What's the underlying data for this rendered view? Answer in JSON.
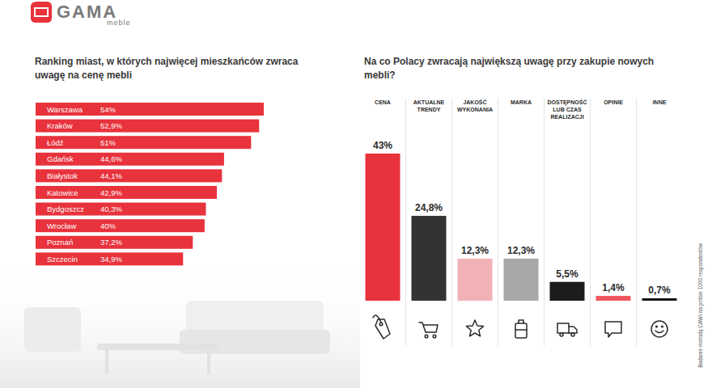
{
  "logo": {
    "name": "GAMA",
    "sub": "meble"
  },
  "note": "Badanie metodą CAWI na próbie 1000 respondentów",
  "chart_data": [
    {
      "type": "bar",
      "orientation": "horizontal",
      "title": "Ranking miast, w których najwięcej mieszkańców zwraca uwagę na cenę mebli",
      "categories": [
        "Warszawa",
        "Kraków",
        "Łódź",
        "Gdańsk",
        "Białystok",
        "Katowice",
        "Bydgoszcz",
        "Wrocław",
        "Poznań",
        "Szczecin"
      ],
      "values": [
        54,
        52.9,
        51,
        44.6,
        44.1,
        42.9,
        40.3,
        40,
        37.2,
        34.9
      ],
      "value_labels": [
        "54%",
        "52,9%",
        "51%",
        "44,6%",
        "44,1%",
        "42,9%",
        "40,3%",
        "40%",
        "37,2%",
        "34,9%"
      ],
      "xlim": [
        0,
        54
      ],
      "color": "#e8323c",
      "data_labels": true,
      "tick_labels": "y",
      "grid": false
    },
    {
      "type": "bar",
      "title": "Na co Polacy zwracają największą uwagę przy zakupie nowych mebli?",
      "categories": [
        "CENA",
        "AKTUALNE TRENDY",
        "JAKOŚĆ WYKONANIA",
        "MARKA",
        "DOSTĘPNOŚĆ LUB CZAS REALIZACJI",
        "OPINIE",
        "INNE"
      ],
      "values": [
        43,
        24.8,
        12.3,
        12.3,
        5.5,
        1.4,
        0.7
      ],
      "value_labels": [
        "43%",
        "24,8%",
        "12,3%",
        "12,3%",
        "5,5%",
        "1,4%",
        "0,7%"
      ],
      "ylim": [
        0,
        43
      ],
      "colors": [
        "#e8323c",
        "#333333",
        "#f2b1b6",
        "#a8a8a8",
        "#1c1c1c",
        "#f0575d",
        "#111111"
      ],
      "data_labels": true,
      "tick_labels": "x",
      "grid": false
    }
  ]
}
